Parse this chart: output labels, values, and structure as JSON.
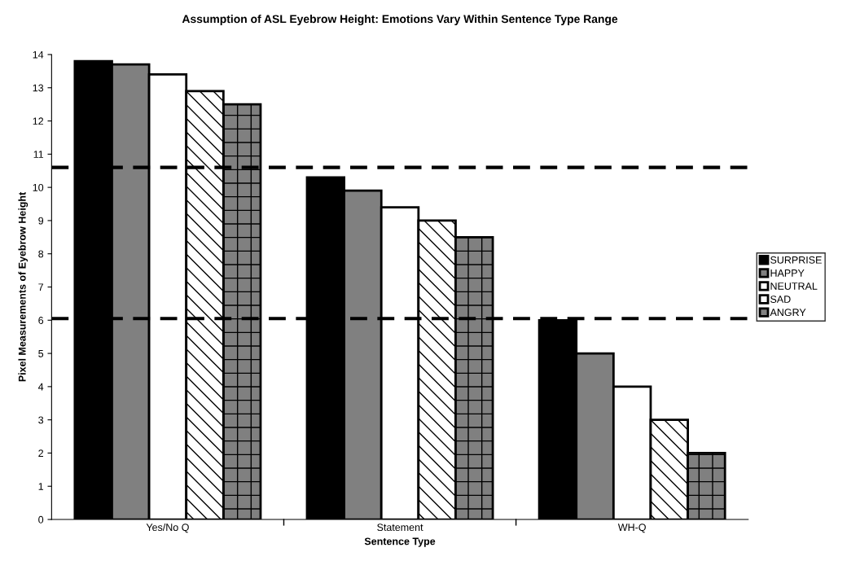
{
  "chart_data": {
    "type": "bar",
    "title": "Assumption of ASL Eyebrow Height: Emotions Vary Within Sentence Type Range",
    "xlabel": "Sentence Type",
    "ylabel": "Pixel Measurements of Eyebrow Height",
    "categories": [
      "Yes/No Q",
      "Statement",
      "WH-Q"
    ],
    "series": [
      {
        "name": "SURPRISE",
        "color": "#000000",
        "values": [
          13.8,
          10.3,
          6.0
        ]
      },
      {
        "name": "HAPPY",
        "color": "#808080",
        "values": [
          13.7,
          9.9,
          5.0
        ]
      },
      {
        "name": "NEUTRAL",
        "color": "#ffffff",
        "values": [
          13.4,
          9.4,
          4.0
        ]
      },
      {
        "name": "SAD",
        "color": "#ffffff",
        "values": [
          12.9,
          9.0,
          3.0
        ]
      },
      {
        "name": "ANGRY",
        "color": "#808080",
        "values": [
          12.5,
          8.5,
          2.0
        ]
      }
    ],
    "ylim": [
      0,
      14
    ],
    "yticks": [
      0,
      1,
      2,
      3,
      4,
      5,
      6,
      7,
      8,
      9,
      10,
      11,
      12,
      13,
      14
    ],
    "ref_lines": [
      {
        "axis": "y",
        "value": 10.6,
        "color": "#000000",
        "line_style": "dashed"
      },
      {
        "axis": "y",
        "value": 6.05,
        "color": "#000000",
        "line_style": "dashed"
      }
    ],
    "grid": false,
    "legend": "right"
  }
}
